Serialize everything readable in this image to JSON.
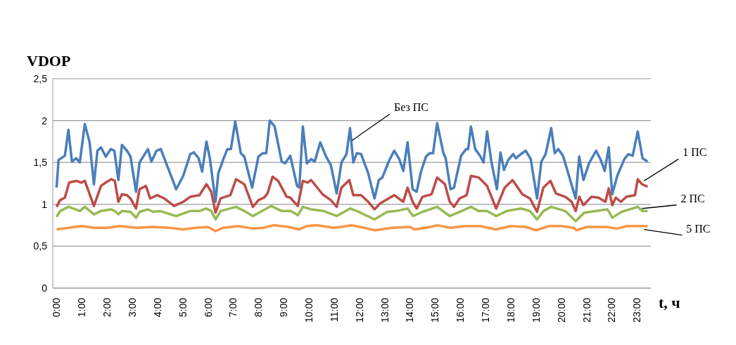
{
  "chart_data": {
    "type": "line",
    "xlabel": "t, ч",
    "ylabel": "VDOP",
    "xlim": [
      -0.15,
      23.55
    ],
    "xticks": [
      {
        "value": 0,
        "label": "0:00"
      },
      {
        "value": 1,
        "label": "1:00"
      },
      {
        "value": 2,
        "label": "2:00"
      },
      {
        "value": 3,
        "label": "3:00"
      },
      {
        "value": 4,
        "label": "4:00"
      },
      {
        "value": 5,
        "label": "5:00"
      },
      {
        "value": 6,
        "label": "6:00"
      },
      {
        "value": 7,
        "label": "7:00"
      },
      {
        "value": 8,
        "label": "8:00"
      },
      {
        "value": 9,
        "label": "9:00"
      },
      {
        "value": 10,
        "label": "10:00"
      },
      {
        "value": 11,
        "label": "11:00"
      },
      {
        "value": 12,
        "label": "12:00"
      },
      {
        "value": 13,
        "label": "13:00"
      },
      {
        "value": 14,
        "label": "14:00"
      },
      {
        "value": 15,
        "label": "15:00"
      },
      {
        "value": 16,
        "label": "16:00"
      },
      {
        "value": 17,
        "label": "17:00"
      },
      {
        "value": 18,
        "label": "18:00"
      },
      {
        "value": 19,
        "label": "19:00"
      },
      {
        "value": 20,
        "label": "20:00"
      },
      {
        "value": 21,
        "label": "21:00"
      },
      {
        "value": 22,
        "label": "22:00"
      },
      {
        "value": 23,
        "label": "23:00"
      }
    ],
    "ylim": [
      0,
      2.5
    ],
    "yticks": [
      0,
      {
        "value": 0.5,
        "label": "0,5"
      },
      1,
      {
        "value": 1.5,
        "label": "1,5"
      },
      2,
      {
        "value": 2.5,
        "label": "2,5"
      }
    ],
    "grid": "y",
    "legend": false,
    "marker": "none",
    "line_style": "solid",
    "annotations": [
      {
        "text": "Без ПС",
        "x": 11.7,
        "y": 1.76
      },
      {
        "text": "1 ПС",
        "x": 23.28,
        "y": 1.28
      },
      {
        "text": "2 ПС",
        "x": 23.2,
        "y": 0.95
      },
      {
        "text": "5 ПС",
        "x": 23.28,
        "y": 0.7
      }
    ],
    "series": [
      {
        "color": "#4a7ebb",
        "x": [
          0,
          0.08,
          0.33,
          0.47,
          0.61,
          0.78,
          0.92,
          1.12,
          1.31,
          1.48,
          1.62,
          1.76,
          1.95,
          2.15,
          2.29,
          2.45,
          2.59,
          2.79,
          2.93,
          3.15,
          3.29,
          3.62,
          3.76,
          3.96,
          4.13,
          4.46,
          4.74,
          5.02,
          5.3,
          5.44,
          5.63,
          5.77,
          5.94,
          6.08,
          6.3,
          6.41,
          6.61,
          6.77,
          6.91,
          7.08,
          7.3,
          7.44,
          7.75,
          8,
          8.17,
          8.31,
          8.45,
          8.64,
          8.92,
          9.06,
          9.26,
          9.53,
          9.62,
          9.76,
          9.92,
          10.09,
          10.23,
          10.45,
          10.68,
          10.87,
          11.1,
          11.29,
          11.49,
          11.63,
          11.76,
          11.9,
          12.07,
          12.35,
          12.6,
          12.77,
          12.91,
          13.16,
          13.38,
          13.58,
          13.74,
          13.91,
          14.11,
          14.27,
          14.44,
          14.64,
          14.78,
          14.92,
          15.08,
          15.33,
          15.42,
          15.61,
          15.75,
          16.03,
          16.23,
          16.31,
          16.42,
          16.59,
          16.78,
          16.92,
          17.06,
          17.23,
          17.45,
          17.59,
          17.73,
          17.9,
          18.09,
          18.2,
          18.4,
          18.59,
          18.79,
          19.04,
          19.21,
          19.38,
          19.6,
          19.74,
          19.88,
          20.07,
          20.57,
          20.71,
          20.88,
          21.1,
          21.38,
          21.55,
          21.72,
          21.88,
          22.02,
          22.22,
          22.5,
          22.66,
          22.83,
          23.03,
          23.22,
          23.42
        ],
        "values": [
          1.2,
          1.53,
          1.58,
          1.89,
          1.51,
          1.55,
          1.5,
          1.96,
          1.74,
          1.24,
          1.64,
          1.68,
          1.57,
          1.66,
          1.64,
          1.29,
          1.71,
          1.64,
          1.57,
          1.15,
          1.5,
          1.66,
          1.51,
          1.64,
          1.66,
          1.4,
          1.18,
          1.34,
          1.6,
          1.62,
          1.55,
          1.39,
          1.75,
          1.54,
          1.03,
          1.37,
          1.54,
          1.66,
          1.66,
          1.99,
          1.61,
          1.57,
          1.2,
          1.57,
          1.61,
          1.61,
          2,
          1.93,
          1.51,
          1.49,
          1.58,
          1.22,
          1.2,
          1.93,
          1.49,
          1.54,
          1.51,
          1.74,
          1.57,
          1.47,
          1.13,
          1.5,
          1.6,
          1.91,
          1.5,
          1.61,
          1.6,
          1.37,
          1.07,
          1.29,
          1.32,
          1.51,
          1.64,
          1.54,
          1.4,
          1.74,
          1.18,
          1.15,
          1.39,
          1.57,
          1.61,
          1.61,
          1.97,
          1.61,
          1.55,
          1.18,
          1.2,
          1.58,
          1.66,
          1.66,
          1.93,
          1.66,
          1.58,
          1.5,
          1.87,
          1.51,
          1.18,
          1.62,
          1.41,
          1.53,
          1.6,
          1.55,
          1.6,
          1.64,
          1.54,
          1.07,
          1.51,
          1.6,
          1.91,
          1.61,
          1.66,
          1.58,
          1.07,
          1.57,
          1.29,
          1.49,
          1.64,
          1.54,
          1.4,
          1.68,
          1.12,
          1.34,
          1.54,
          1.6,
          1.58,
          1.87,
          1.55,
          1.51
        ]
      },
      {
        "color": "#be4b48",
        "x": [
          0,
          0.14,
          0.33,
          0.5,
          0.78,
          0.98,
          1.12,
          1.48,
          1.76,
          1.95,
          2.17,
          2.31,
          2.45,
          2.59,
          2.79,
          2.93,
          3.15,
          3.29,
          3.54,
          3.71,
          3.99,
          4.27,
          4.66,
          5.02,
          5.3,
          5.66,
          5.94,
          6.13,
          6.3,
          6.5,
          6.89,
          7.11,
          7.44,
          7.78,
          8,
          8.22,
          8.36,
          8.56,
          8.78,
          9.12,
          9.26,
          9.56,
          9.76,
          9.95,
          10.09,
          10.54,
          10.87,
          11.1,
          11.29,
          11.43,
          11.6,
          11.76,
          12.07,
          12.35,
          12.6,
          12.82,
          13.38,
          13.74,
          13.91,
          14.11,
          14.27,
          14.5,
          14.86,
          15.08,
          15.39,
          15.58,
          15.75,
          15.97,
          16.25,
          16.42,
          16.73,
          17.06,
          17.42,
          17.76,
          18.07,
          18.46,
          18.76,
          19.04,
          19.29,
          19.57,
          19.79,
          20.16,
          20.41,
          20.57,
          20.71,
          20.88,
          21.19,
          21.47,
          21.75,
          21.88,
          22.02,
          22.16,
          22.36,
          22.58,
          22.92,
          23.03,
          23.2,
          23.42
        ],
        "values": [
          0.97,
          1.05,
          1.08,
          1.26,
          1.28,
          1.26,
          1.28,
          0.98,
          1.22,
          1.26,
          1.3,
          1.28,
          1.03,
          1.12,
          1.11,
          1.07,
          0.95,
          1.18,
          1.22,
          1.07,
          1.11,
          1.07,
          0.98,
          1.03,
          1.09,
          1.11,
          1.24,
          1.15,
          0.9,
          1.07,
          1.11,
          1.3,
          1.24,
          0.97,
          1.05,
          1.08,
          1.13,
          1.33,
          1.28,
          1.09,
          1.08,
          0.98,
          1.28,
          1.26,
          1.29,
          1.12,
          1.05,
          0.97,
          1.2,
          1.24,
          1.29,
          1.11,
          1.11,
          1.03,
          0.94,
          1.01,
          1.11,
          1.03,
          1.2,
          1.03,
          0.95,
          1.09,
          1.12,
          1.32,
          1.24,
          1.03,
          0.97,
          1.07,
          1.11,
          1.34,
          1.32,
          1.22,
          0.95,
          1.2,
          1.29,
          1.12,
          1.07,
          0.91,
          1.2,
          1.28,
          1.13,
          1.09,
          1.03,
          0.92,
          1.09,
          0.99,
          1.09,
          1.08,
          1.03,
          1.19,
          0.99,
          1.08,
          1.03,
          1.09,
          1.11,
          1.3,
          1.24,
          1.21
        ]
      },
      {
        "color": "#98b954",
        "x": [
          0,
          0.14,
          0.47,
          0.75,
          0.92,
          1.12,
          1.48,
          1.76,
          2.15,
          2.31,
          2.45,
          2.59,
          2.93,
          3.15,
          3.29,
          3.62,
          3.82,
          4.1,
          4.74,
          5.3,
          5.66,
          5.94,
          6.13,
          6.3,
          6.5,
          7.11,
          7.44,
          7.78,
          8.08,
          8.5,
          8.92,
          9.28,
          9.56,
          9.76,
          10.09,
          10.59,
          11.1,
          11.63,
          11.9,
          12.6,
          13.1,
          13.46,
          13.91,
          14.13,
          14.5,
          15.08,
          15.58,
          15.97,
          16.42,
          16.73,
          17.06,
          17.42,
          17.84,
          18.4,
          18.76,
          19.04,
          19.29,
          19.6,
          20.16,
          20.57,
          20.91,
          21.38,
          21.83,
          22.02,
          22.39,
          23.03,
          23.22,
          23.42
        ],
        "values": [
          0.85,
          0.92,
          0.97,
          0.94,
          0.92,
          0.97,
          0.88,
          0.92,
          0.94,
          0.92,
          0.88,
          0.92,
          0.91,
          0.84,
          0.91,
          0.94,
          0.91,
          0.92,
          0.86,
          0.92,
          0.92,
          0.95,
          0.92,
          0.82,
          0.92,
          0.97,
          0.92,
          0.86,
          0.91,
          0.98,
          0.92,
          0.92,
          0.87,
          0.97,
          0.94,
          0.92,
          0.86,
          0.95,
          0.92,
          0.82,
          0.91,
          0.92,
          0.95,
          0.86,
          0.91,
          0.97,
          0.86,
          0.91,
          0.97,
          0.92,
          0.92,
          0.86,
          0.92,
          0.95,
          0.92,
          0.82,
          0.92,
          0.97,
          0.92,
          0.8,
          0.9,
          0.92,
          0.94,
          0.84,
          0.91,
          0.97,
          0.92,
          0.92
        ]
      },
      {
        "color": "#f79646",
        "x": [
          0,
          1,
          1.5,
          2,
          2.5,
          3.2,
          3.8,
          4.5,
          5,
          5.5,
          6,
          6.3,
          6.6,
          7.2,
          7.8,
          8.2,
          8.6,
          9.2,
          9.6,
          9.9,
          10.3,
          11,
          11.5,
          11.7,
          12.2,
          12.6,
          13.3,
          14,
          14.2,
          14.8,
          15.1,
          15.6,
          16.2,
          16.8,
          17.4,
          18,
          18.6,
          19,
          19.5,
          20,
          20.5,
          20.6,
          21,
          21.8,
          22.2,
          22.6,
          23.42
        ],
        "values": [
          0.7,
          0.74,
          0.72,
          0.72,
          0.74,
          0.72,
          0.73,
          0.72,
          0.7,
          0.72,
          0.73,
          0.68,
          0.72,
          0.74,
          0.71,
          0.72,
          0.75,
          0.73,
          0.7,
          0.74,
          0.75,
          0.72,
          0.74,
          0.75,
          0.72,
          0.69,
          0.72,
          0.73,
          0.7,
          0.73,
          0.75,
          0.72,
          0.74,
          0.74,
          0.7,
          0.74,
          0.73,
          0.69,
          0.74,
          0.74,
          0.72,
          0.69,
          0.73,
          0.73,
          0.71,
          0.74,
          0.74
        ]
      }
    ]
  }
}
